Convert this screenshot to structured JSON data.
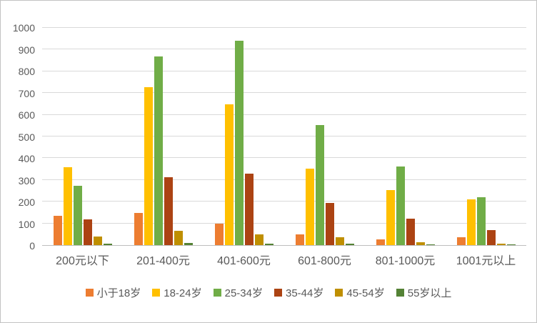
{
  "chart_data": {
    "type": "bar",
    "title": "",
    "xlabel": "",
    "ylabel": "",
    "ylim": [
      0,
      1000
    ],
    "yticks": [
      0,
      100,
      200,
      300,
      400,
      500,
      600,
      700,
      800,
      900,
      1000
    ],
    "grid": true,
    "legend_position": "bottom",
    "categories": [
      "200元以下",
      "201-400元",
      "401-600元",
      "601-800元",
      "801-1000元",
      "1001元以上"
    ],
    "series": [
      {
        "name": "小于18岁",
        "color": "#ED7D31",
        "values": [
          135,
          147,
          98,
          50,
          27,
          37
        ]
      },
      {
        "name": "18-24岁",
        "color": "#FFC000",
        "values": [
          358,
          727,
          648,
          353,
          253,
          210
        ]
      },
      {
        "name": "25-34岁",
        "color": "#70AD47",
        "values": [
          272,
          868,
          940,
          553,
          363,
          220
        ]
      },
      {
        "name": "35-44岁",
        "color": "#AC4313",
        "values": [
          118,
          312,
          330,
          193,
          122,
          70
        ]
      },
      {
        "name": "45-54岁",
        "color": "#BF8F00",
        "values": [
          40,
          65,
          50,
          35,
          13,
          8
        ]
      },
      {
        "name": "55岁以上",
        "color": "#548235",
        "values": [
          5,
          10,
          8,
          8,
          3,
          3
        ]
      }
    ]
  },
  "colors": {
    "background": "#FFFFFF",
    "frame_border": "#C3C3C3",
    "gridline": "#D9D9D9",
    "axis_line": "#BFBFBF",
    "text": "#595959"
  }
}
